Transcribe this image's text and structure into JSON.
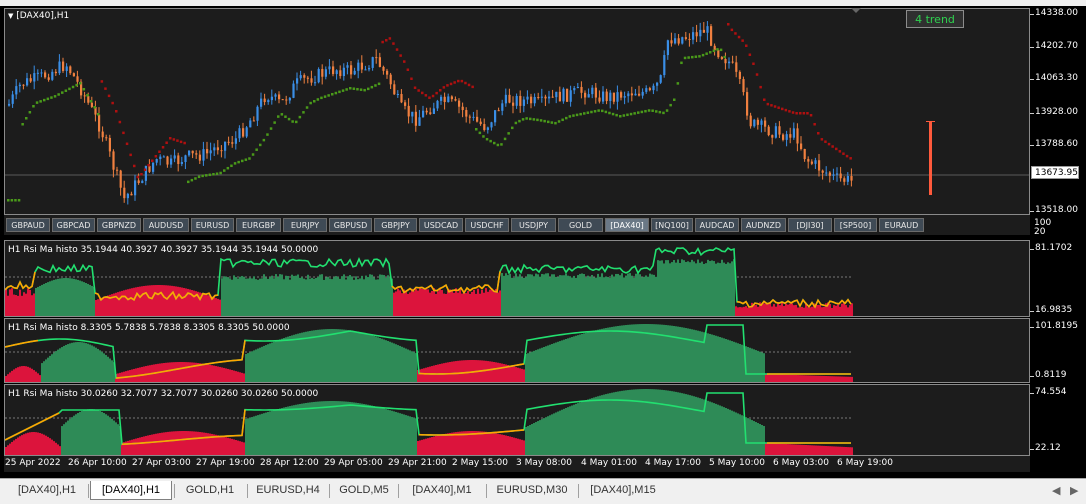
{
  "main_chart": {
    "title": "[DAX40],H1",
    "trend_button": "4 trend",
    "current_price": "13673.95",
    "price_ticks": [
      "14338.00",
      "14202.70",
      "14063.30",
      "13928.00",
      "13788.60",
      "13518.00"
    ],
    "right_misc": [
      "100",
      "20"
    ]
  },
  "symbols": [
    {
      "label": "GBPAUD",
      "active": false
    },
    {
      "label": "GBPCAD",
      "active": false
    },
    {
      "label": "GBPNZD",
      "active": false
    },
    {
      "label": "AUDUSD",
      "active": false
    },
    {
      "label": "EURUSD",
      "active": false
    },
    {
      "label": "EURGBP",
      "active": false
    },
    {
      "label": "EURJPY",
      "active": false
    },
    {
      "label": "GBPUSD",
      "active": false
    },
    {
      "label": "GBPJPY",
      "active": false
    },
    {
      "label": "USDCAD",
      "active": false
    },
    {
      "label": "USDCHF",
      "active": false
    },
    {
      "label": "USDJPY",
      "active": false
    },
    {
      "label": "GOLD",
      "active": false
    },
    {
      "label": "[DAX40]",
      "active": true
    },
    {
      "label": "[NQ100]",
      "active": false
    },
    {
      "label": "AUDCAD",
      "active": false
    },
    {
      "label": "AUDNZD",
      "active": false
    },
    {
      "label": "[DJI30]",
      "active": false
    },
    {
      "label": "[SP500]",
      "active": false
    },
    {
      "label": "EURAUD",
      "active": false
    }
  ],
  "indicators": [
    {
      "label": "H1 Rsi Ma histo 35.1944 40.3927 40.3927 35.1944 35.1944 50.0000",
      "max": "81.1702",
      "min": "16.9835"
    },
    {
      "label": "H1 Rsi Ma histo 8.3305 5.7838 5.7838 8.3305 8.3305 50.0000",
      "max": "101.8195",
      "min": "0.8119"
    },
    {
      "label": "H1 Rsi Ma histo 30.0260 32.7077 32.7077 30.0260 30.0260 50.0000",
      "max": "74.554",
      "min": "22.12"
    }
  ],
  "time_axis": [
    "25 Apr 2022",
    "26 Apr 10:00",
    "27 Apr 03:00",
    "27 Apr 19:00",
    "28 Apr 12:00",
    "29 Apr 05:00",
    "29 Apr 21:00",
    "2 May 15:00",
    "3 May 08:00",
    "4 May 01:00",
    "4 May 17:00",
    "5 May 10:00",
    "6 May 03:00",
    "6 May 19:00"
  ],
  "tabs": [
    {
      "label": "[DAX40],H1",
      "active": false
    },
    {
      "label": "[DAX40],H1",
      "active": true
    },
    {
      "label": "GOLD,H1",
      "active": false
    },
    {
      "label": "EURUSD,H4",
      "active": false
    },
    {
      "label": "GOLD,M5",
      "active": false
    },
    {
      "label": "[DAX40],M1",
      "active": false
    },
    {
      "label": "EURUSD,M30",
      "active": false
    },
    {
      "label": "[DAX40],M15",
      "active": false
    }
  ],
  "colors": {
    "bull": "#3a8ee6",
    "bear": "#f08040",
    "ma_up": "#4a9a1a",
    "ma_down": "#b01010",
    "hist_green": "#2e8b57",
    "hist_red": "#dc143c",
    "line_green": "#22e070",
    "line_orange": "#ffa500"
  }
}
